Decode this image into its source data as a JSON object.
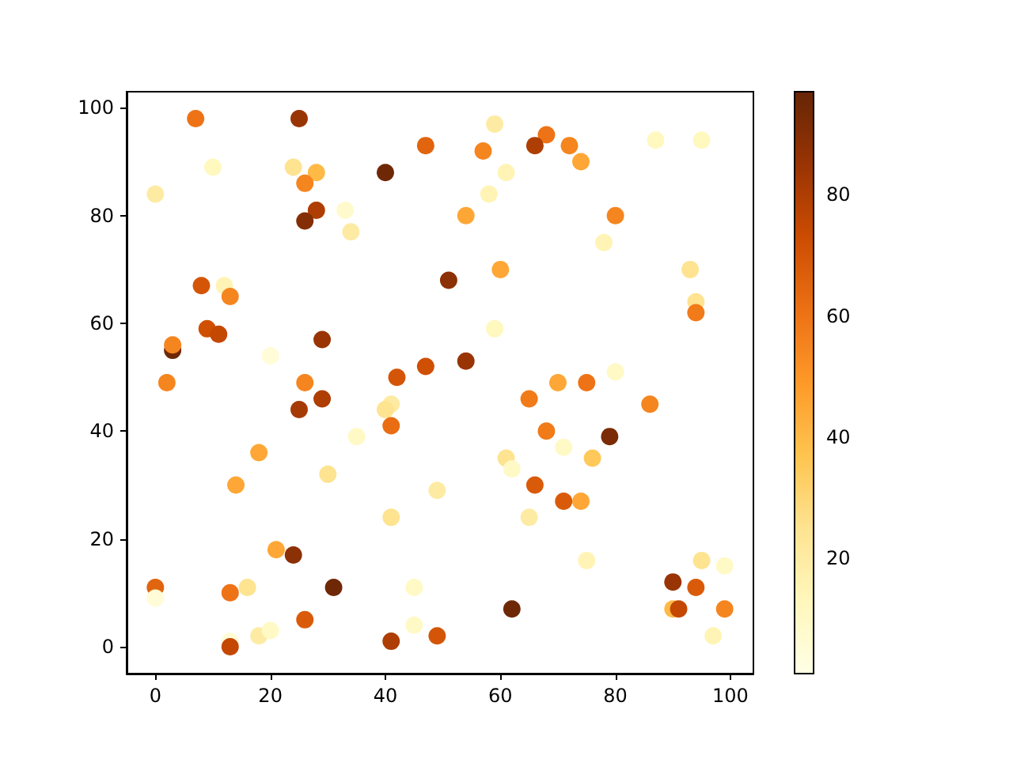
{
  "chart_data": {
    "type": "scatter",
    "marker": "circle",
    "x": [
      7,
      25,
      47,
      10,
      24,
      28,
      40,
      26,
      0,
      28,
      33,
      26,
      34,
      8,
      12,
      13,
      9,
      11,
      29,
      3,
      3,
      20,
      2,
      26,
      29,
      42,
      25,
      41,
      40,
      41,
      35,
      18,
      14,
      30,
      41,
      21,
      24,
      0,
      0,
      13,
      16,
      31,
      26,
      18,
      20,
      13,
      13,
      45,
      41,
      45,
      49,
      49,
      59,
      68,
      66,
      57,
      72,
      74,
      61,
      58,
      54,
      80,
      78,
      60,
      51,
      93,
      94,
      94,
      59,
      87,
      95,
      54,
      80,
      70,
      75,
      47,
      65,
      86,
      68,
      79,
      71,
      61,
      62,
      76,
      66,
      71,
      74,
      65,
      75,
      95,
      99,
      90,
      94,
      62,
      90,
      91,
      99,
      97
    ],
    "values": [
      98,
      98,
      93,
      89,
      89,
      88,
      88,
      86,
      84,
      81,
      81,
      79,
      77,
      67,
      67,
      65,
      59,
      58,
      57,
      55,
      56,
      54,
      49,
      49,
      46,
      50,
      44,
      45,
      44,
      41,
      39,
      36,
      30,
      32,
      24,
      18,
      17,
      11,
      9,
      10,
      11,
      11,
      5,
      2,
      3,
      1,
      0,
      11,
      1,
      4,
      2,
      29,
      97,
      95,
      93,
      92,
      93,
      90,
      88,
      84,
      80,
      80,
      75,
      70,
      68,
      70,
      64,
      62,
      59,
      94,
      94,
      53,
      51,
      49,
      49,
      52,
      46,
      45,
      40,
      39,
      37,
      35,
      33,
      35,
      30,
      27,
      27,
      24,
      16,
      16,
      15,
      12,
      11,
      7,
      7,
      7,
      7,
      2
    ],
    "cvalues": [
      60,
      85,
      65,
      12,
      25,
      40,
      95,
      55,
      20,
      80,
      8,
      90,
      20,
      70,
      15,
      55,
      72,
      75,
      85,
      95,
      55,
      5,
      55,
      55,
      80,
      70,
      82,
      20,
      25,
      62,
      10,
      45,
      45,
      25,
      25,
      45,
      88,
      65,
      5,
      60,
      25,
      95,
      68,
      20,
      10,
      5,
      75,
      10,
      80,
      10,
      70,
      20,
      20,
      60,
      80,
      55,
      55,
      45,
      15,
      15,
      45,
      55,
      15,
      45,
      88,
      25,
      25,
      58,
      12,
      12,
      12,
      85,
      10,
      45,
      60,
      72,
      58,
      55,
      58,
      92,
      10,
      25,
      10,
      35,
      68,
      68,
      45,
      20,
      15,
      25,
      10,
      85,
      68,
      95,
      40,
      75,
      55,
      15
    ],
    "xlim": [
      -5,
      104
    ],
    "xticks": [
      0,
      20,
      40,
      60,
      80,
      100
    ],
    "ylim": [
      -5,
      103
    ],
    "yticks": [
      0,
      20,
      40,
      60,
      80,
      100
    ],
    "clim": [
      1,
      97
    ],
    "cticks": [
      20,
      40,
      60,
      80
    ]
  }
}
